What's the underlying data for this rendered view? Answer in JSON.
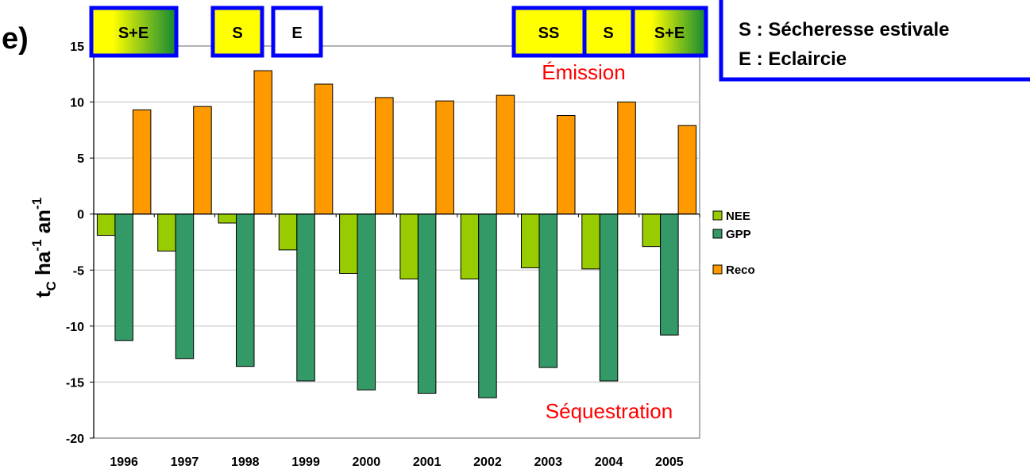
{
  "panel_label": "e)",
  "events": [
    {
      "label": "S+E",
      "style": "gradient",
      "year": "1996"
    },
    {
      "label": "S",
      "style": "yellow",
      "year": "1998"
    },
    {
      "label": "E",
      "style": "white",
      "year": "1999"
    },
    {
      "label": "SS",
      "style": "yellow",
      "year": "2003"
    },
    {
      "label": "S",
      "style": "yellow",
      "year": "2004"
    },
    {
      "label": "S+E",
      "style": "gradient",
      "year": "2005"
    }
  ],
  "definitions": [
    "S : Sécheresse estivale",
    "E : Eclaircie"
  ],
  "annotations": {
    "emission": "Émission",
    "sequestration": "Séquestration"
  },
  "colors": {
    "NEE": "#99cc00",
    "GPP": "#339966",
    "Reco": "#ff9900",
    "annotation_red": "#ff0000",
    "frame_blue": "#0000ff",
    "box_yellow": "#ffff00",
    "gradient_end": "#118833",
    "gridline": "#c0c0c0"
  },
  "chart_data": {
    "type": "bar",
    "title": "",
    "xlabel": "",
    "ylabel_main": "t",
    "ylabel_sub": "C",
    "ylabel_rest1": " ha",
    "ylabel_sup1": "-1",
    "ylabel_rest2": " an",
    "ylabel_sup2": "-1",
    "categories": [
      "1996",
      "1997",
      "1998",
      "1999",
      "2000",
      "2001",
      "2002",
      "2003",
      "2004",
      "2005"
    ],
    "series": [
      {
        "name": "NEE",
        "values": [
          -1.9,
          -3.3,
          -0.8,
          -3.2,
          -5.3,
          -5.8,
          -5.8,
          -4.8,
          -4.9,
          -2.9
        ]
      },
      {
        "name": "GPP",
        "values": [
          -11.3,
          -12.9,
          -13.6,
          -14.9,
          -15.7,
          -16.0,
          -16.4,
          -13.7,
          -14.9,
          -10.8
        ]
      },
      {
        "name": "Reco",
        "values": [
          9.3,
          9.6,
          12.8,
          11.6,
          10.4,
          10.1,
          10.6,
          8.8,
          10.0,
          7.9
        ]
      }
    ],
    "ylim": [
      -20,
      15
    ],
    "yticks": [
      "15",
      "10",
      "5",
      "0",
      "-5",
      "-10",
      "-15",
      "-20"
    ],
    "grid": true,
    "legend_position": "right"
  }
}
